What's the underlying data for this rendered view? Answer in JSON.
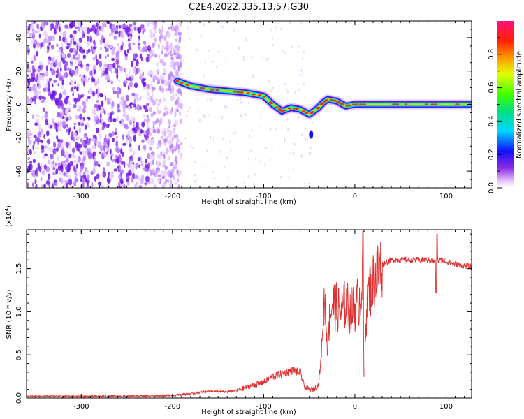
{
  "title": "C2E4.2022.335.13.57.G30",
  "chart_data": [
    {
      "type": "heatmap",
      "xlabel": "Height of straight line (km)",
      "ylabel": "Frequency (Hz)",
      "xlim": [
        -360,
        128
      ],
      "ylim": [
        -50,
        50
      ],
      "xticks": [
        -300,
        -200,
        -100,
        0,
        100
      ],
      "yticks": [
        -40,
        -20,
        0,
        20,
        40
      ],
      "ridge": {
        "x": [
          -195,
          -180,
          -160,
          -140,
          -120,
          -100,
          -90,
          -80,
          -70,
          -60,
          -50,
          -40,
          -35,
          -30,
          -20,
          -10,
          0,
          20,
          60,
          100,
          128
        ],
        "y": [
          14,
          11,
          9,
          8,
          7,
          5,
          0,
          -4,
          -2,
          -3,
          -6,
          -2,
          1,
          3,
          2,
          -1,
          0,
          0,
          0,
          0,
          0
        ]
      },
      "colorbar": {
        "label": "Normalized spectral amplitude",
        "range": [
          0,
          1
        ],
        "ticks": [
          0.0,
          0.2,
          0.4,
          0.6,
          0.8
        ],
        "tick_labels": [
          "0.0",
          "0.2",
          "0.4",
          "0.6",
          "0.8"
        ]
      }
    },
    {
      "type": "line",
      "xlabel": "Height of straight line (km)",
      "ylabel": "SNR (10 * v/v)",
      "multiplier": "(x10",
      "multiplier_exp": "4",
      "multiplier_close": ")",
      "xlim": [
        -360,
        128
      ],
      "ylim": [
        0,
        1.95
      ],
      "xticks": [
        -300,
        -200,
        -100,
        0,
        100
      ],
      "yticks": [
        0.0,
        0.5,
        1.0,
        1.5
      ],
      "ytick_labels": [
        "0.0",
        "0.5",
        "1.0",
        "1.5"
      ],
      "line_color": "#e03030",
      "x": [
        -360,
        -300,
        -250,
        -200,
        -180,
        -160,
        -140,
        -125,
        -115,
        -100,
        -90,
        -80,
        -70,
        -60,
        -55,
        -50,
        -45,
        -40,
        -37,
        -35,
        -33,
        -30,
        -28,
        -25,
        -20,
        -15,
        -10,
        -5,
        0,
        5,
        8,
        10,
        15,
        20,
        25,
        30,
        40,
        60,
        80,
        88,
        95,
        110,
        128
      ],
      "y": [
        0.02,
        0.02,
        0.02,
        0.03,
        0.05,
        0.08,
        0.07,
        0.1,
        0.14,
        0.18,
        0.25,
        0.28,
        0.32,
        0.3,
        0.12,
        0.1,
        0.1,
        0.15,
        0.45,
        0.9,
        1.2,
        0.6,
        0.9,
        1.1,
        1.05,
        1.0,
        1.1,
        1.0,
        1.05,
        1.15,
        1.3,
        0.7,
        1.2,
        1.35,
        1.45,
        1.55,
        1.6,
        1.6,
        1.6,
        1.58,
        1.6,
        1.55,
        1.52
      ]
    }
  ]
}
